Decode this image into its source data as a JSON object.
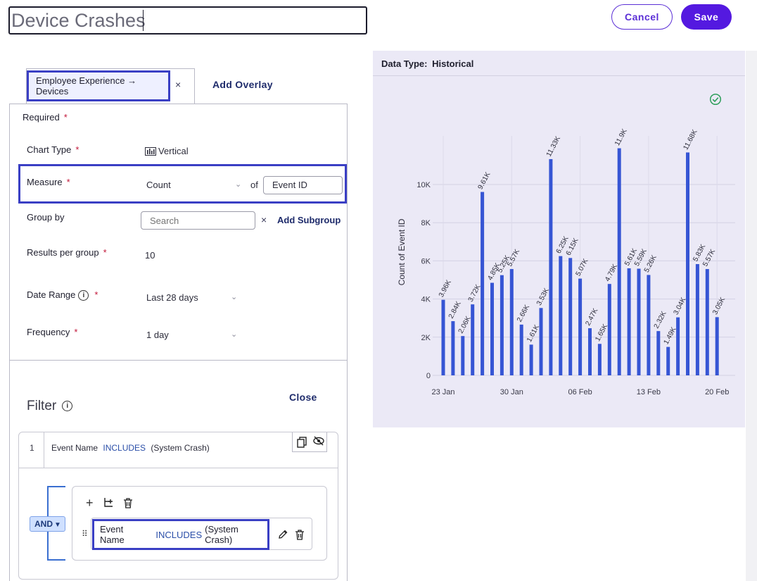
{
  "header": {
    "title_value": "Device Crashes",
    "cancel_label": "Cancel",
    "save_label": "Save"
  },
  "tabs": {
    "source_label": "Employee Experience → Devices",
    "close_glyph": "×",
    "add_overlay_label": "Add Overlay"
  },
  "config": {
    "required_label": "Required",
    "required_star": "*",
    "chart_type_label": "Chart Type",
    "chart_type_value": "Vertical",
    "measure_label": "Measure",
    "measure_value": "Count",
    "of_label": "of",
    "measure_field_value": "Event ID",
    "group_by_label": "Group by",
    "group_search_placeholder": "Search",
    "add_subgroup_label": "Add Subgroup",
    "results_label": "Results per group",
    "results_value": "10",
    "date_range_label": "Date Range",
    "date_range_value": "Last 28 days",
    "frequency_label": "Frequency",
    "frequency_value": "1 day"
  },
  "filter": {
    "title": "Filter",
    "close_label": "Close",
    "row_number": "1",
    "row_field": "Event Name",
    "row_operator": "INCLUDES",
    "row_value": "(System Crash)",
    "logic_label": "AND",
    "inner_field": "Event Name",
    "inner_operator": "INCLUDES",
    "inner_value": "(System Crash)"
  },
  "chart_panel": {
    "data_type_label": "Data Type:",
    "data_type_value": "Historical",
    "status_icon": "check-circle-icon",
    "status_color": "#2e9e5b"
  },
  "chart_data": {
    "type": "bar",
    "ylabel": "Count of Event ID",
    "ylim": [
      0,
      12000
    ],
    "yticks": [
      0,
      2000,
      4000,
      6000,
      8000,
      10000
    ],
    "ytick_labels": [
      "0",
      "2K",
      "4K",
      "6K",
      "8K",
      "10K"
    ],
    "xtick_labels": [
      "23 Jan",
      "30 Jan",
      "06 Feb",
      "13 Feb",
      "20 Feb"
    ],
    "xtick_indices": [
      0,
      7,
      14,
      21,
      28
    ],
    "bar_color": "#3655d4",
    "values": [
      3960,
      2840,
      2060,
      3720,
      9610,
      4850,
      5250,
      5570,
      2660,
      1610,
      3530,
      11330,
      6250,
      6150,
      5070,
      2470,
      1650,
      4790,
      11900,
      5610,
      5590,
      5260,
      2320,
      1490,
      3040,
      11680,
      5830,
      5570,
      3050
    ],
    "labels": [
      "3.96K",
      "2.84K",
      "2.06K",
      "3.72K",
      "9.61K",
      "4.85K",
      "5.25K",
      "5.57K",
      "2.66K",
      "1.61K",
      "3.53K",
      "11.33K",
      "6.25K",
      "6.15K",
      "5.07K",
      "2.47K",
      "1.65K",
      "4.79K",
      "11.9K",
      "5.61K",
      "5.59K",
      "5.26K",
      "2.32K",
      "1.49K",
      "3.04K",
      "11.68K",
      "5.83K",
      "5.57K",
      "3.05K"
    ],
    "grid": true
  }
}
